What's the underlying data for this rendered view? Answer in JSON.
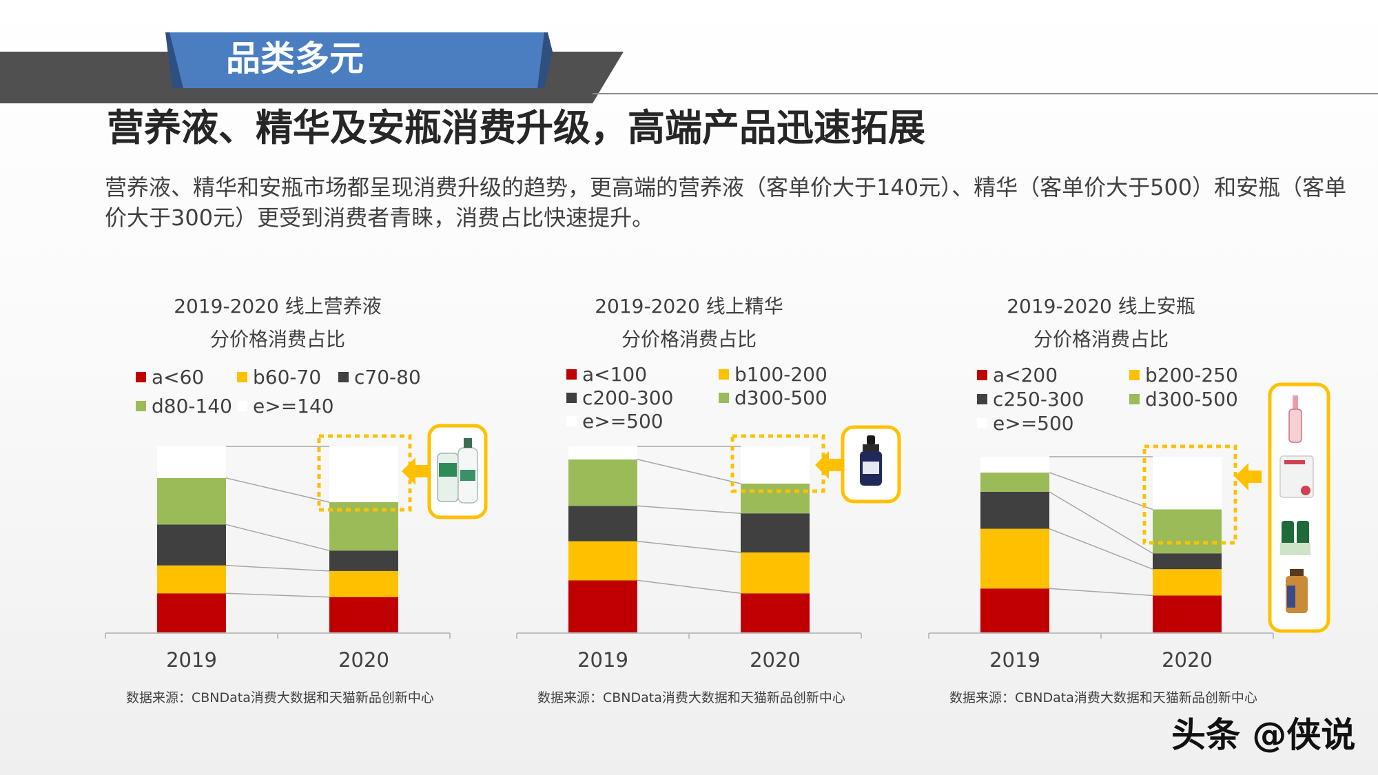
{
  "header": {
    "section_label": "品类多元",
    "title": "营养液、精华及安瓶消费升级，高端产品迅速拓展",
    "description": "营养液、精华和安瓶市场都呈现消费升级的趋势，更高端的营养液（客单价大于140元）、精华（客单价大于500）和安瓶（客单价大于300元）更受到消费者青睐，消费占比快速提升。"
  },
  "colors": {
    "red": "#C00000",
    "yellow": "#FFC000",
    "dark": "#404040",
    "green": "#9BBB59",
    "white": "#FFFFFF",
    "highlight": "#FFC000",
    "header_blue": "#4A7EC0",
    "header_gray": "#505050"
  },
  "chart_data": [
    {
      "type": "bar",
      "stacked": true,
      "normalized": true,
      "title": "2019-2020 线上营养液",
      "subtitle": "分价格消费占比",
      "categories": [
        "2019",
        "2020"
      ],
      "series": [
        {
          "name": "a<60",
          "color": "#C00000",
          "values": [
            21,
            19
          ]
        },
        {
          "name": "b60-70",
          "color": "#FFC000",
          "values": [
            15,
            14
          ]
        },
        {
          "name": "c70-80",
          "color": "#404040",
          "values": [
            22,
            11
          ]
        },
        {
          "name": "d80-140",
          "color": "#9BBB59",
          "values": [
            25,
            26
          ]
        },
        {
          "name": "e>=140",
          "color": "#FFFFFF",
          "values": [
            17,
            30
          ]
        }
      ],
      "ylim": [
        0,
        100
      ],
      "source": "数据来源：CBNData消费大数据和天猫新品创新中心",
      "product_icon": "nutrient-spray-bottle-icon"
    },
    {
      "type": "bar",
      "stacked": true,
      "normalized": true,
      "title": "2019-2020 线上精华",
      "subtitle": "分价格消费占比",
      "categories": [
        "2019",
        "2020"
      ],
      "series": [
        {
          "name": "a<100",
          "color": "#C00000",
          "values": [
            28,
            21
          ]
        },
        {
          "name": "b100-200",
          "color": "#FFC000",
          "values": [
            21,
            22
          ]
        },
        {
          "name": "c200-300",
          "color": "#404040",
          "values": [
            19,
            21
          ]
        },
        {
          "name": "d300-500",
          "color": "#9BBB59",
          "values": [
            25,
            16
          ]
        },
        {
          "name": "e>=500",
          "color": "#FFFFFF",
          "values": [
            7,
            20
          ]
        }
      ],
      "ylim": [
        0,
        100
      ],
      "source": "数据来源：CBNData消费大数据和天猫新品创新中心",
      "product_icon": "serum-dropper-bottle-icon"
    },
    {
      "type": "bar",
      "stacked": true,
      "normalized": true,
      "title": "2019-2020 线上安瓶",
      "subtitle": "分价格消费占比",
      "categories": [
        "2019",
        "2020"
      ],
      "series": [
        {
          "name": "a<200",
          "color": "#C00000",
          "values": [
            25,
            21
          ]
        },
        {
          "name": "b200-250",
          "color": "#FFC000",
          "values": [
            34,
            15
          ]
        },
        {
          "name": "c250-300",
          "color": "#404040",
          "values": [
            21,
            9
          ]
        },
        {
          "name": "d300-500",
          "color": "#9BBB59",
          "values": [
            11,
            25
          ]
        },
        {
          "name": "e>=500",
          "color": "#FFFFFF",
          "values": [
            9,
            30
          ]
        }
      ],
      "ylim": [
        0,
        100
      ],
      "source": "数据来源：CBNData消费大数据和天猫新品创新中心",
      "product_icon": "ampoule-products-icon"
    }
  ],
  "watermark": "头条 @侠说"
}
